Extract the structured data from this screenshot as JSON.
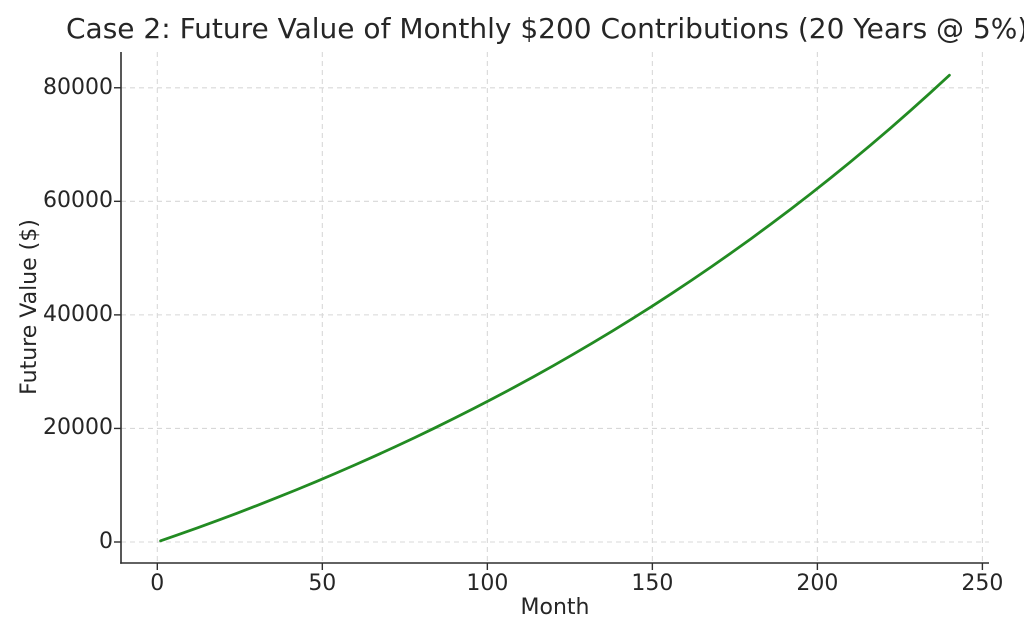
{
  "window": {
    "background": "#ffffff"
  },
  "chart_data": {
    "type": "line",
    "title": "Case 2: Future Value of Monthly $200 Contributions (20 Years @ 5%)",
    "xlabel": "Month",
    "ylabel": "Future Value ($)",
    "xlim": [
      -11,
      252
    ],
    "ylim": [
      -3700,
      86300
    ],
    "xticks": [
      0,
      50,
      100,
      150,
      200,
      250
    ],
    "yticks": [
      0,
      20000,
      40000,
      60000,
      80000
    ],
    "grid": true,
    "grid_linestyle": "dashed",
    "legend": "none",
    "colors": {
      "line": "#228b22",
      "grid": "#d8d8d8",
      "axis": "#2e2e2e",
      "text": "#262626",
      "background": "#ffffff"
    },
    "series": [
      {
        "name": "future-value",
        "color": "#228b22",
        "line_width": 2.8,
        "monthly_contribution": 200,
        "annual_rate_pct": 5,
        "points": [
          [
            1,
            200
          ],
          [
            6,
            1213
          ],
          [
            12,
            2456
          ],
          [
            18,
            3730
          ],
          [
            24,
            5037
          ],
          [
            30,
            6377
          ],
          [
            36,
            7751
          ],
          [
            42,
            9159
          ],
          [
            48,
            10603
          ],
          [
            54,
            12083
          ],
          [
            60,
            13601
          ],
          [
            66,
            15158
          ],
          [
            72,
            16753
          ],
          [
            78,
            18389
          ],
          [
            84,
            20066
          ],
          [
            90,
            21785
          ],
          [
            96,
            23548
          ],
          [
            102,
            25355
          ],
          [
            108,
            27209
          ],
          [
            114,
            29108
          ],
          [
            120,
            31056
          ],
          [
            126,
            33054
          ],
          [
            132,
            35101
          ],
          [
            138,
            37201
          ],
          [
            144,
            39353
          ],
          [
            150,
            41560
          ],
          [
            156,
            43822
          ],
          [
            162,
            46142
          ],
          [
            168,
            48520
          ],
          [
            174,
            50958
          ],
          [
            180,
            53458
          ],
          [
            186,
            56021
          ],
          [
            192,
            58649
          ],
          [
            198,
            61343
          ],
          [
            204,
            64106
          ],
          [
            210,
            66938
          ],
          [
            216,
            69841
          ],
          [
            222,
            72818
          ],
          [
            228,
            75870
          ],
          [
            234,
            79000
          ],
          [
            240,
            82207
          ]
        ]
      }
    ]
  }
}
